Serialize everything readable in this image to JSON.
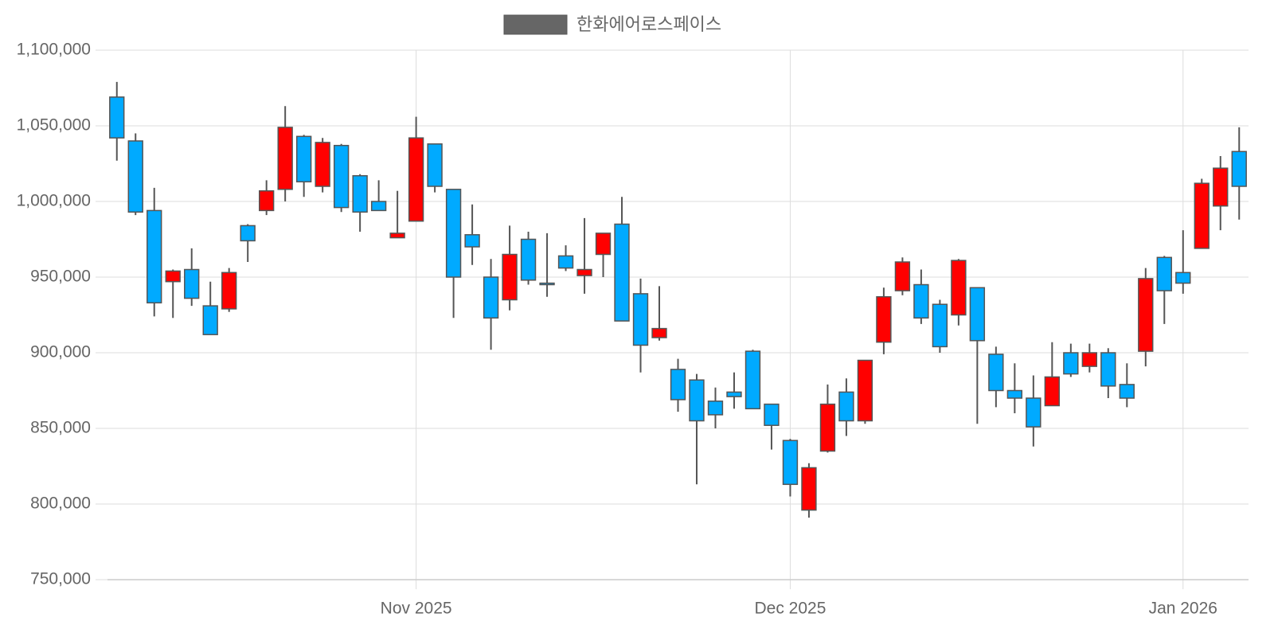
{
  "chart_data": {
    "type": "candlestick",
    "categories": [
      null,
      null,
      null,
      null,
      null,
      null,
      null,
      null,
      null,
      null,
      null,
      null,
      null,
      null,
      null,
      null,
      "Nov 2025",
      null,
      null,
      null,
      null,
      null,
      null,
      null,
      null,
      null,
      null,
      null,
      null,
      null,
      null,
      null,
      null,
      null,
      null,
      null,
      "Dec 2025",
      null,
      null,
      null,
      null,
      null,
      null,
      null,
      null,
      null,
      null,
      null,
      null,
      null,
      null,
      null,
      null,
      null,
      null,
      null,
      null,
      "Jan 2026",
      null,
      null,
      null
    ],
    "series": [
      {
        "name": "한화에어로스페이스",
        "color": "#666666",
        "open": [
          1069000,
          1040000,
          994000,
          947000,
          955000,
          931000,
          929000,
          984000,
          994000,
          1008000,
          1043000,
          1010000,
          1037000,
          1017000,
          1000000,
          976000,
          987000,
          1038000,
          1008000,
          978000,
          950000,
          935000,
          975000,
          946000,
          964000,
          951000,
          965000,
          985000,
          939000,
          910000,
          889000,
          882000,
          868000,
          874000,
          901000,
          866000,
          842000,
          796000,
          835000,
          874000,
          855000,
          907000,
          941000,
          945000,
          932000,
          925000,
          943000,
          899000,
          875000,
          870000,
          865000,
          900000,
          891000,
          900000,
          879000,
          901000,
          963000,
          953000,
          969000,
          997000,
          1033000
        ],
        "high": [
          1079000,
          1045000,
          1009000,
          955000,
          969000,
          947000,
          956000,
          985000,
          1014000,
          1063000,
          1044000,
          1042000,
          1038000,
          1018000,
          1014000,
          1007000,
          1056000,
          1038000,
          1008000,
          998000,
          962000,
          984000,
          980000,
          979000,
          971000,
          989000,
          979000,
          1003000,
          949000,
          944000,
          896000,
          886000,
          877000,
          887000,
          902000,
          866000,
          843000,
          827000,
          879000,
          883000,
          895000,
          943000,
          963000,
          955000,
          935000,
          962000,
          943000,
          904000,
          893000,
          885000,
          907000,
          906000,
          906000,
          903000,
          893000,
          956000,
          964000,
          981000,
          1015000,
          1030000,
          1049000
        ],
        "low": [
          1027000,
          991000,
          924000,
          923000,
          931000,
          912000,
          927000,
          960000,
          991000,
          1000000,
          1003000,
          1006000,
          993000,
          980000,
          994000,
          976000,
          987000,
          1006000,
          923000,
          958000,
          902000,
          928000,
          945000,
          937000,
          954000,
          939000,
          950000,
          921000,
          887000,
          908000,
          861000,
          813000,
          850000,
          863000,
          863000,
          836000,
          805000,
          791000,
          834000,
          845000,
          853000,
          899000,
          938000,
          919000,
          900000,
          918000,
          853000,
          864000,
          860000,
          838000,
          865000,
          884000,
          887000,
          870000,
          864000,
          891000,
          919000,
          939000,
          969000,
          981000,
          988000
        ],
        "close": [
          1042000,
          993000,
          933000,
          954000,
          936000,
          912000,
          953000,
          974000,
          1007000,
          1049000,
          1013000,
          1039000,
          996000,
          993000,
          994000,
          979000,
          1042000,
          1010000,
          950000,
          970000,
          923000,
          965000,
          948000,
          945000,
          956000,
          955000,
          979000,
          921000,
          905000,
          916000,
          869000,
          855000,
          859000,
          871000,
          863000,
          852000,
          813000,
          824000,
          866000,
          855000,
          895000,
          937000,
          960000,
          923000,
          904000,
          961000,
          908000,
          875000,
          870000,
          851000,
          884000,
          886000,
          900000,
          878000,
          870000,
          949000,
          941000,
          946000,
          1012000,
          1022000,
          1010000
        ]
      }
    ],
    "up_color": "#ff0000",
    "down_color": "#00aaff",
    "ylim": [
      750000,
      1100000
    ],
    "yticks": [
      {
        "value": 750000,
        "label": "750,000"
      },
      {
        "value": 800000,
        "label": "800,000"
      },
      {
        "value": 850000,
        "label": "850,000"
      },
      {
        "value": 900000,
        "label": "900,000"
      },
      {
        "value": 950000,
        "label": "950,000"
      },
      {
        "value": 1000000,
        "label": "1,000,000"
      },
      {
        "value": 1050000,
        "label": "1,050,000"
      },
      {
        "value": 1100000,
        "label": "1,100,000"
      }
    ],
    "grid": true
  }
}
